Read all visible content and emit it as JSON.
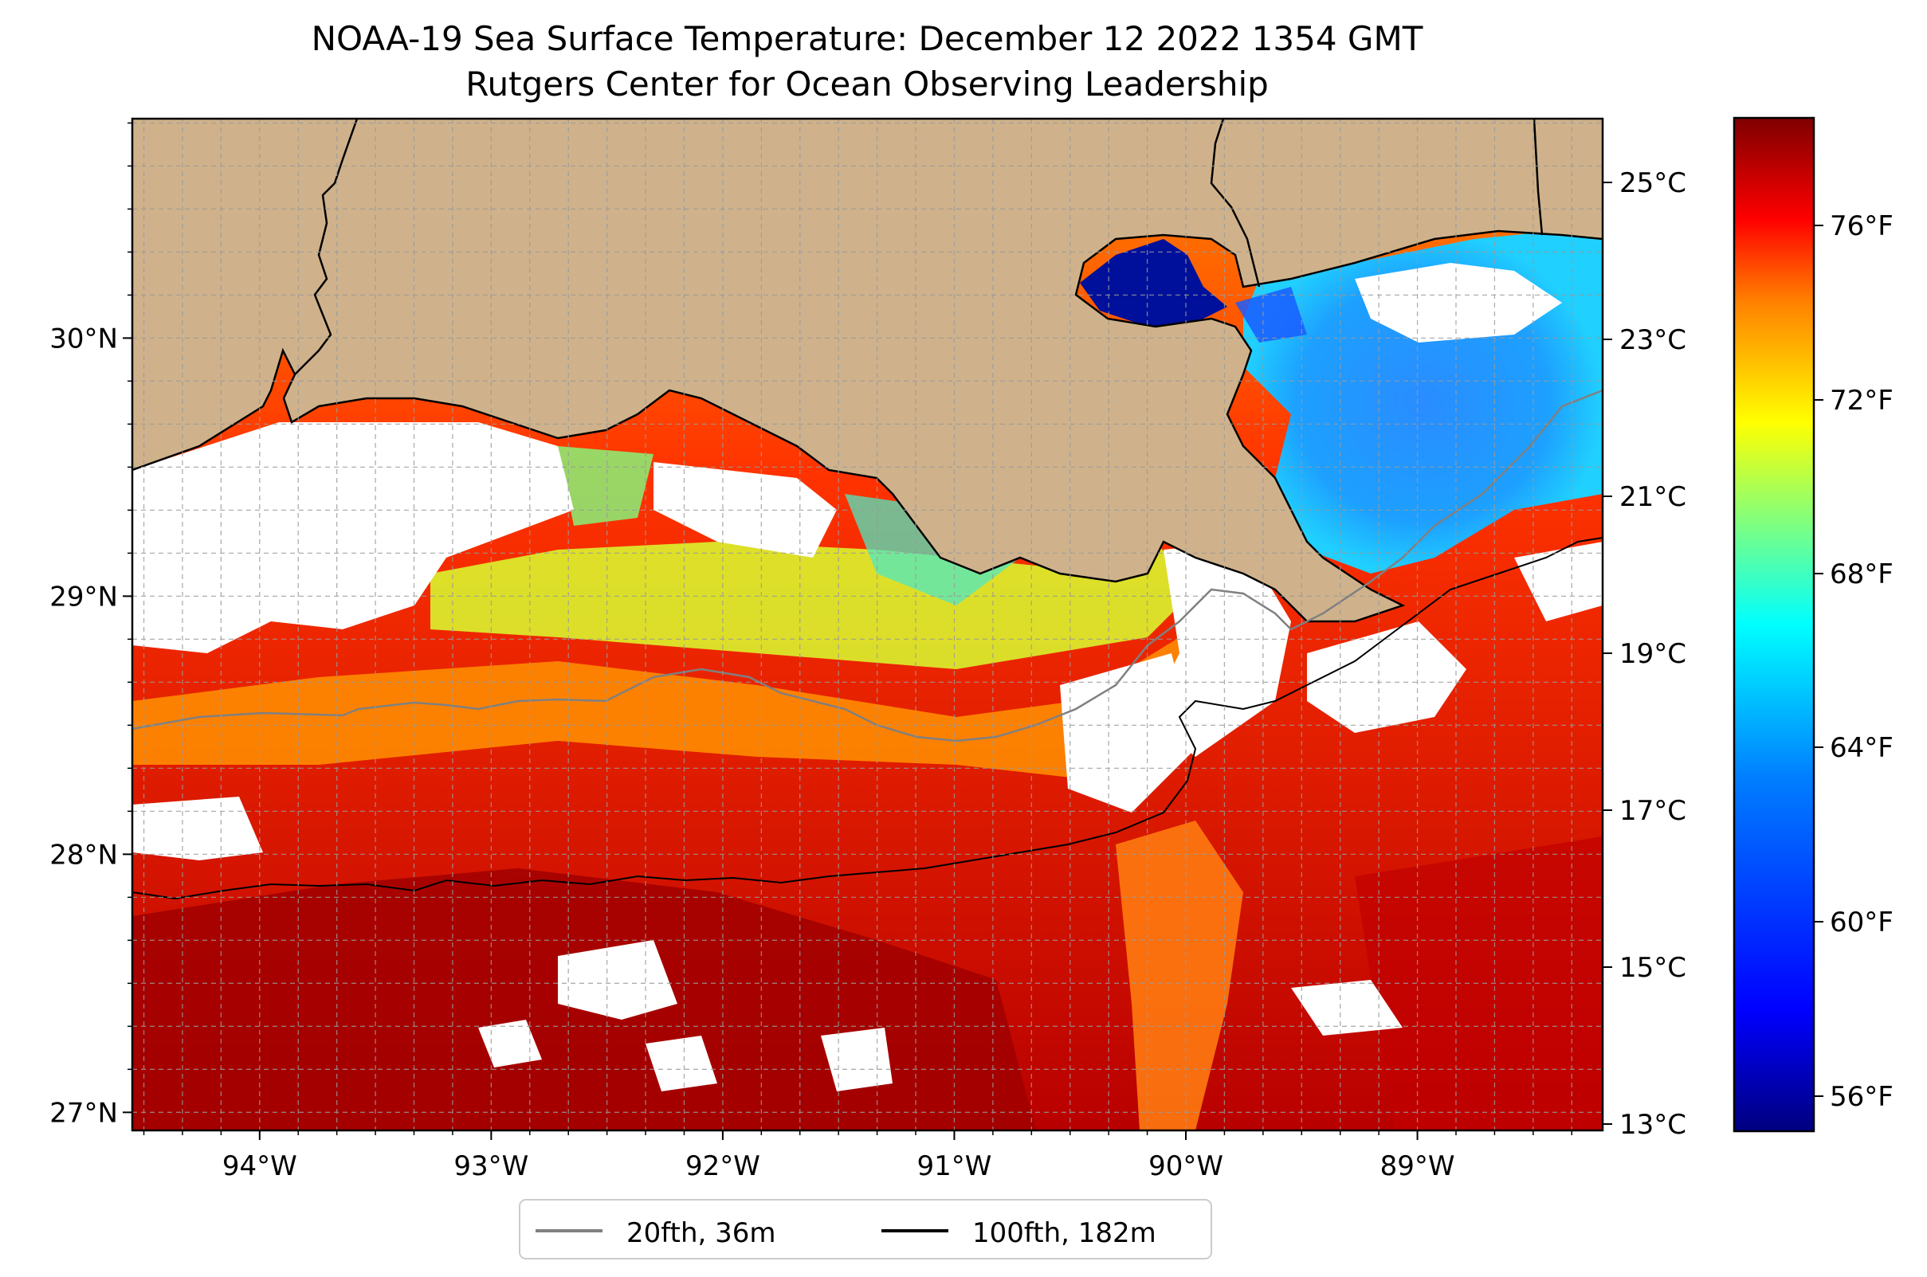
{
  "title": "NOAA-19 Sea Surface Temperature: December 12 2022 1354 GMT",
  "subtitle": "Rutgers Center for Ocean Observing Leadership",
  "map": {
    "lon_range": [
      -94.55,
      -88.2
    ],
    "lat_range": [
      26.93,
      30.85
    ],
    "lon_ticks": [
      "94°W",
      "93°W",
      "92°W",
      "91°W",
      "90°W",
      "89°W"
    ],
    "lat_ticks": [
      "30°N",
      "29°N",
      "28°N",
      "27°N"
    ],
    "land_color": "#cfb28b",
    "no_data_color": "#ffffff",
    "gridlines": true
  },
  "colorbar": {
    "celsius_ticks": [
      "25°C",
      "23°C",
      "21°C",
      "19°C",
      "17°C",
      "15°C",
      "13°C"
    ],
    "fahrenheit_ticks": [
      "76°F",
      "72°F",
      "68°F",
      "64°F",
      "60°F",
      "56°F"
    ],
    "colormap": "jet",
    "colors": [
      "#00007f",
      "#0000ff",
      "#007fff",
      "#00ffff",
      "#7fff7f",
      "#ffff00",
      "#ff7f00",
      "#ff0000",
      "#7f0000"
    ]
  },
  "legend": {
    "items": [
      {
        "label": "20fth, 36m",
        "color": "#808080"
      },
      {
        "label": "100fth, 182m",
        "color": "#000000"
      }
    ]
  }
}
